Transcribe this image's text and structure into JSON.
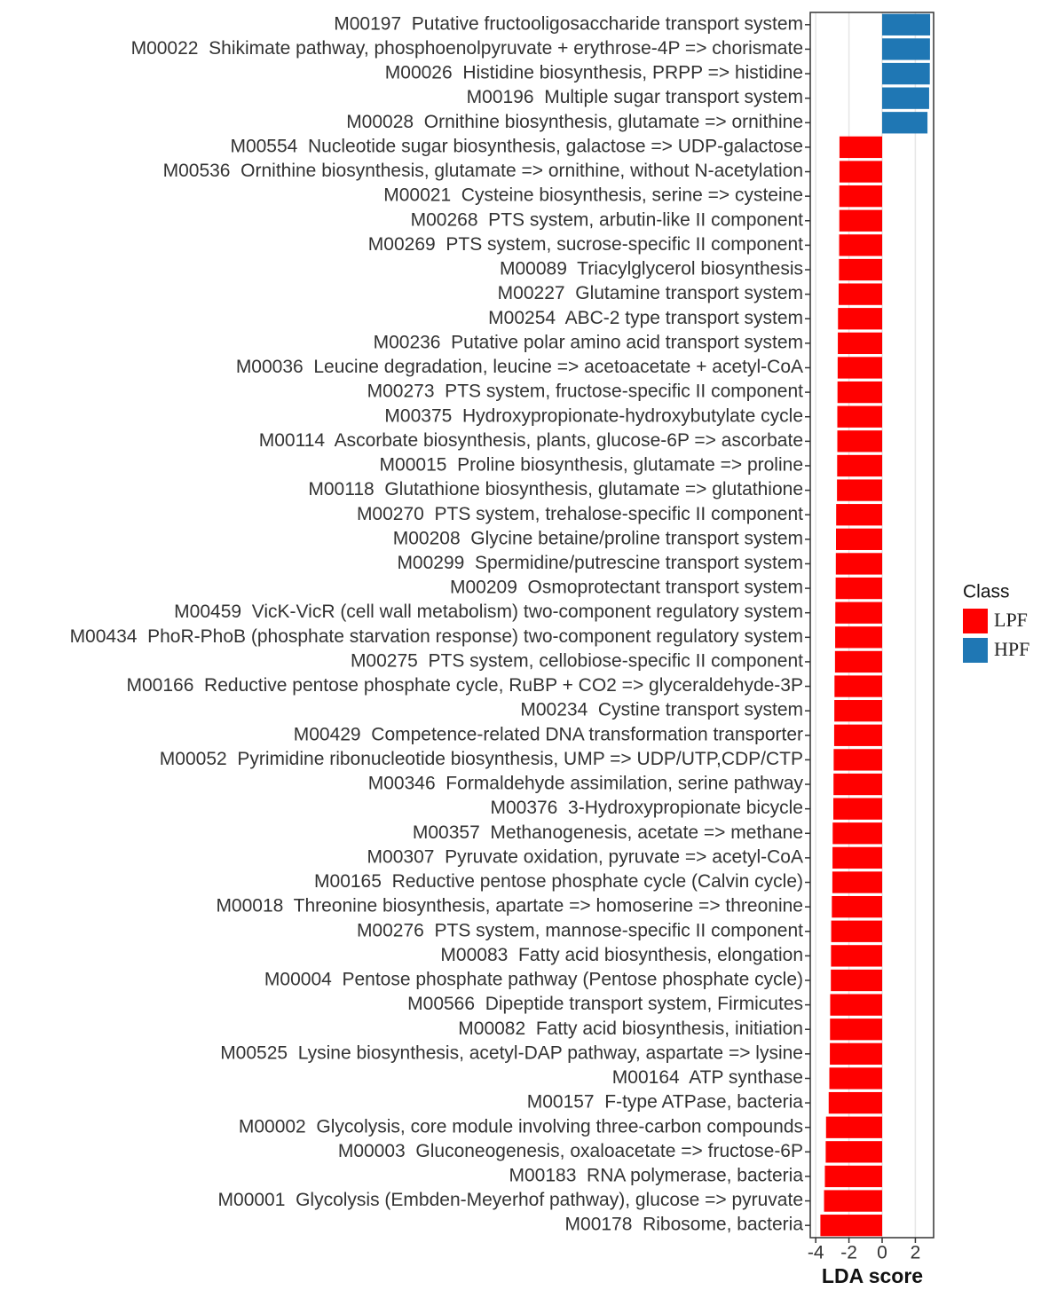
{
  "chart_data": {
    "type": "barh",
    "xlabel": "LDA score",
    "legend_title": "Class",
    "legend": "right",
    "grid": true,
    "xlim": [
      -4.33,
      3.1
    ],
    "xticks": [
      -4,
      -2,
      0,
      2
    ],
    "categories": [
      "M00197  Putative fructooligosaccharide transport system",
      "M00022  Shikimate pathway, phosphoenolpyruvate + erythrose-4P => chorismate",
      "M00026  Histidine biosynthesis, PRPP => histidine",
      "M00196  Multiple sugar transport system",
      "M00028  Ornithine biosynthesis, glutamate => ornithine",
      "M00554  Nucleotide sugar biosynthesis, galactose => UDP-galactose",
      "M00536  Ornithine biosynthesis, glutamate => ornithine, without N-acetylation",
      "M00021  Cysteine biosynthesis, serine => cysteine",
      "M00268  PTS system, arbutin-like II component",
      "M00269  PTS system, sucrose-specific II component",
      "M00089  Triacylglycerol biosynthesis",
      "M00227  Glutamine transport system",
      "M00254  ABC-2 type transport system",
      "M00236  Putative polar amino acid transport system",
      "M00036  Leucine degradation, leucine => acetoacetate + acetyl-CoA",
      "M00273  PTS system, fructose-specific II component",
      "M00375  Hydroxypropionate-hydroxybutylate cycle",
      "M00114  Ascorbate biosynthesis, plants, glucose-6P => ascorbate",
      "M00015  Proline biosynthesis, glutamate => proline",
      "M00118  Glutathione biosynthesis, glutamate => glutathione",
      "M00270  PTS system, trehalose-specific II component",
      "M00208  Glycine betaine/proline transport system",
      "M00299  Spermidine/putrescine transport system",
      "M00209  Osmoprotectant transport system",
      "M00459  VicK-VicR (cell wall metabolism) two-component regulatory system",
      "M00434  PhoR-PhoB (phosphate starvation response) two-component regulatory system",
      "M00275  PTS system, cellobiose-specific II component",
      "M00166  Reductive pentose phosphate cycle, RuBP + CO2 => glyceraldehyde-3P",
      "M00234  Cystine transport system",
      "M00429  Competence-related DNA transformation transporter",
      "M00052  Pyrimidine ribonucleotide biosynthesis, UMP => UDP/UTP,CDP/CTP",
      "M00346  Formaldehyde assimilation, serine pathway",
      "M00376  3-Hydroxypropionate bicycle",
      "M00357  Methanogenesis, acetate => methane",
      "M00307  Pyruvate oxidation, pyruvate => acetyl-CoA",
      "M00165  Reductive pentose phosphate cycle (Calvin cycle)",
      "M00018  Threonine biosynthesis, apartate => homoserine => threonine",
      "M00276  PTS system, mannose-specific II component",
      "M00083  Fatty acid biosynthesis, elongation",
      "M00004  Pentose phosphate pathway (Pentose phosphate cycle)",
      "M00566  Dipeptide transport system, Firmicutes",
      "M00082  Fatty acid biosynthesis, initiation",
      "M00525  Lysine biosynthesis, acetyl-DAP pathway, aspartate => lysine",
      "M00164  ATP synthase",
      "M00157  F-type ATPase, bacteria",
      "M00002  Glycolysis, core module involving three-carbon compounds",
      "M00003  Gluconeogenesis, oxaloacetate => fructose-6P",
      "M00183  RNA polymerase, bacteria",
      "M00001  Glycolysis (Embden-Meyerhof pathway), glucose => pyruvate",
      "M00178  Ribosome, bacteria"
    ],
    "series": [
      {
        "name": "LPF",
        "color": "#ff0000",
        "values": [
          null,
          null,
          null,
          null,
          null,
          -2.57,
          -2.57,
          -2.58,
          -2.58,
          -2.59,
          -2.6,
          -2.62,
          -2.66,
          -2.67,
          -2.68,
          -2.69,
          -2.7,
          -2.7,
          -2.71,
          -2.72,
          -2.77,
          -2.78,
          -2.79,
          -2.8,
          -2.82,
          -2.83,
          -2.84,
          -2.87,
          -2.88,
          -2.89,
          -2.92,
          -2.93,
          -2.94,
          -2.98,
          -2.99,
          -3.0,
          -3.03,
          -3.07,
          -3.08,
          -3.09,
          -3.13,
          -3.14,
          -3.15,
          -3.18,
          -3.22,
          -3.38,
          -3.4,
          -3.45,
          -3.5,
          -3.72
        ]
      },
      {
        "name": "HPF",
        "color": "#1f77b4",
        "values": [
          2.89,
          2.88,
          2.87,
          2.83,
          2.73,
          null,
          null,
          null,
          null,
          null,
          null,
          null,
          null,
          null,
          null,
          null,
          null,
          null,
          null,
          null,
          null,
          null,
          null,
          null,
          null,
          null,
          null,
          null,
          null,
          null,
          null,
          null,
          null,
          null,
          null,
          null,
          null,
          null,
          null,
          null,
          null,
          null,
          null,
          null,
          null,
          null,
          null,
          null,
          null,
          null
        ]
      }
    ]
  }
}
